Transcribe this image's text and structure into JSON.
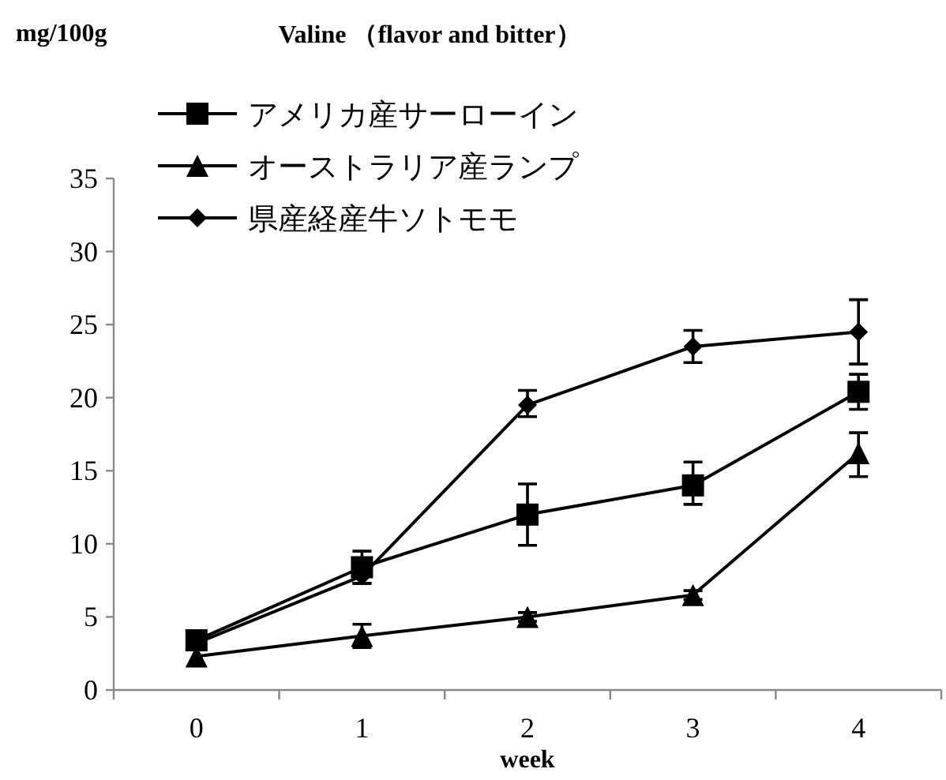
{
  "chart_data": {
    "type": "line",
    "title": "Valine （flavor and bitter）",
    "ylabel": "mg/100g",
    "xlabel": "week",
    "categories": [
      "0",
      "1",
      "2",
      "3",
      "4"
    ],
    "ylim": [
      0,
      35
    ],
    "yticks": [
      0,
      5,
      10,
      15,
      20,
      25,
      30,
      35
    ],
    "grid": false,
    "legend": "top left",
    "line_style": "solid",
    "series": [
      {
        "name": "アメリカ産サーローイン",
        "color": "#000000",
        "marker": "square",
        "values": [
          3.4,
          8.4,
          12.0,
          14.0,
          20.4
        ],
        "errors": [
          null,
          1.1,
          2.1,
          [
            12.7,
            15.6
          ],
          1.2
        ]
      },
      {
        "name": "オーストラリア産ランプ",
        "color": "#000000",
        "marker": "triangle",
        "values": [
          2.3,
          3.7,
          5.0,
          6.5,
          16.2
        ],
        "errors": [
          null,
          0.8,
          0.3,
          0.3,
          [
            14.6,
            17.6
          ]
        ]
      },
      {
        "name": "県産経産牛ソトモモ",
        "color": "#000000",
        "marker": "diamond",
        "values": [
          3.2,
          7.8,
          19.5,
          23.5,
          24.5
        ],
        "errors": [
          null,
          0.5,
          [
            18.7,
            20.5
          ],
          1.1,
          2.2
        ]
      }
    ]
  }
}
